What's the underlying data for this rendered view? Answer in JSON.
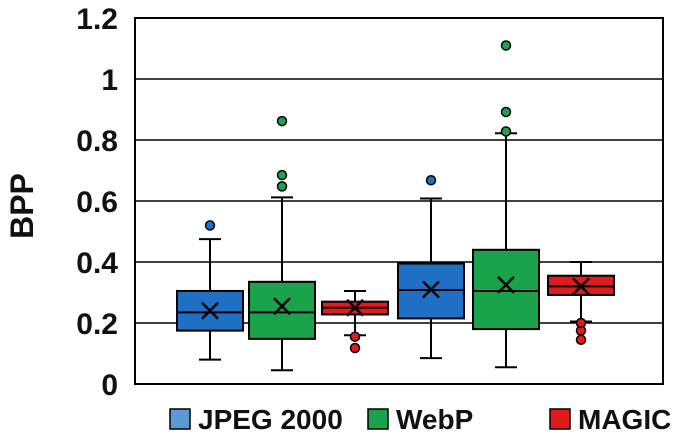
{
  "chart_data": {
    "type": "box",
    "title": "",
    "xlabel": "",
    "ylabel": "BPP",
    "ylim": [
      0,
      1.2
    ],
    "yticks": [
      "0",
      "0.2",
      "0.4",
      "0.6",
      "0.8",
      "1",
      "1.2"
    ],
    "grid": "horizontal",
    "legend_position": "bottom",
    "series": [
      {
        "name": "JPEG 2000",
        "color": "#1f6fc4",
        "light": "#5b9bd5"
      },
      {
        "name": "WebP",
        "color": "#1aa34a",
        "light": "#1aa34a"
      },
      {
        "name": "MAGIC",
        "color": "#e11b1b",
        "light": "#e11b1b"
      }
    ],
    "boxes": [
      {
        "series": "JPEG 2000",
        "group": 1,
        "min": 0.08,
        "q1": 0.175,
        "median": 0.235,
        "mean": 0.24,
        "q3": 0.305,
        "max": 0.475,
        "outliers": [
          0.52
        ]
      },
      {
        "series": "WebP",
        "group": 1,
        "min": 0.045,
        "q1": 0.148,
        "median": 0.235,
        "mean": 0.255,
        "q3": 0.335,
        "max": 0.612,
        "outliers": [
          0.648,
          0.685,
          0.862
        ]
      },
      {
        "series": "MAGIC",
        "group": 1,
        "min": 0.16,
        "q1": 0.228,
        "median": 0.25,
        "mean": 0.25,
        "q3": 0.27,
        "max": 0.305,
        "outliers": [
          0.118,
          0.155
        ]
      },
      {
        "series": "JPEG 2000",
        "group": 2,
        "min": 0.085,
        "q1": 0.215,
        "median": 0.308,
        "mean": 0.31,
        "q3": 0.395,
        "max": 0.608,
        "outliers": [
          0.668
        ]
      },
      {
        "series": "WebP",
        "group": 2,
        "min": 0.055,
        "q1": 0.18,
        "median": 0.305,
        "mean": 0.325,
        "q3": 0.44,
        "max": 0.822,
        "outliers": [
          0.828,
          0.892,
          1.11
        ]
      },
      {
        "series": "MAGIC",
        "group": 2,
        "min": 0.205,
        "q1": 0.292,
        "median": 0.32,
        "mean": 0.32,
        "q3": 0.355,
        "max": 0.4,
        "outliers": [
          0.145,
          0.175,
          0.2
        ]
      }
    ]
  }
}
